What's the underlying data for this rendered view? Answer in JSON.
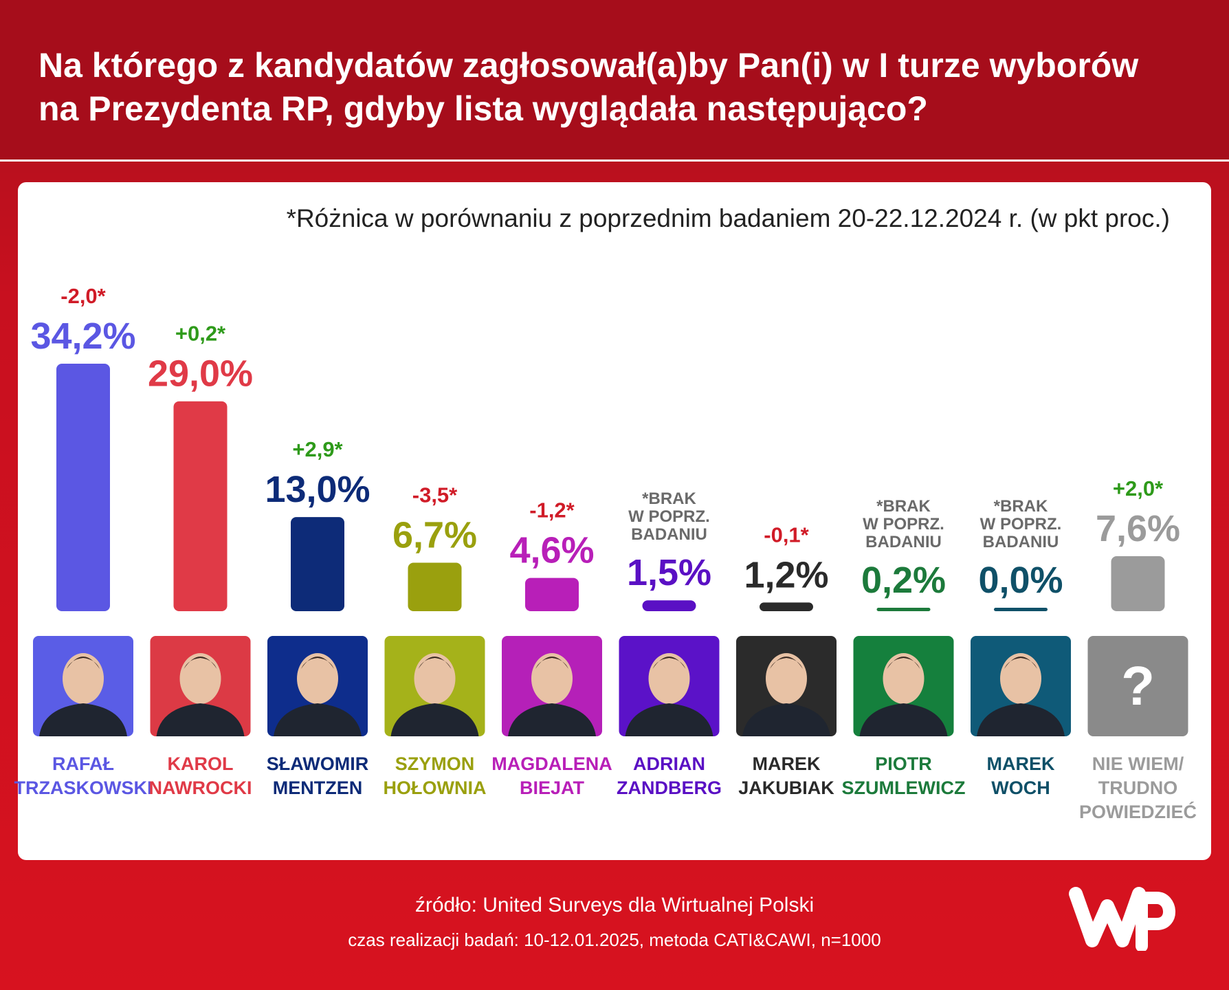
{
  "title": "Na którego z kandydatów zagłosował(a)by Pan(i) w I turze wyborów na Prezydenta RP, gdyby lista wyglądała następująco?",
  "note": "*Różnica w porównaniu z poprzednim badaniem 20-22.12.2024 r. (w pkt proc.)",
  "footer": {
    "source": "źródło: United Surveys dla Wirtualnej Polski",
    "meta": "czas realizacji badań: 10-12.01.2025, metoda CATI&CAWI, n=1000"
  },
  "logo_text": "WP",
  "colors": {
    "header": "#a60d1b",
    "background": "#d7121f",
    "card": "#ffffff"
  },
  "chart_data": {
    "type": "bar",
    "title": "Na którego z kandydatów zagłosował(a)by Pan(i) w I turze wyborów na Prezydenta RP, gdyby lista wyglądała następująco?",
    "categories": [
      [
        "RAFAŁ",
        "TRZASKOWSKI"
      ],
      [
        "KAROL",
        "NAWROCKI"
      ],
      [
        "SŁAWOMIR",
        "MENTZEN"
      ],
      [
        "SZYMON",
        "HOŁOWNIA"
      ],
      [
        "MAGDALENA",
        "BIEJAT"
      ],
      [
        "ADRIAN",
        "ZANDBERG"
      ],
      [
        "MAREK",
        "JAKUBIAK"
      ],
      [
        "PIOTR",
        "SZUMLEWICZ"
      ],
      [
        "MAREK",
        "WOCH"
      ],
      [
        "NIE WIEM/",
        "TRUDNO",
        "POWIEDZIEĆ"
      ]
    ],
    "values": [
      34.2,
      29.0,
      13.0,
      6.7,
      4.6,
      1.5,
      1.2,
      0.2,
      0.0,
      7.6
    ],
    "value_labels": [
      "34,2%",
      "29,0%",
      "13,0%",
      "6,7%",
      "4,6%",
      "1,5%",
      "1,2%",
      "0,2%",
      "0,0%",
      "7,6%"
    ],
    "change_labels": [
      [
        "-2,0*"
      ],
      [
        "+0,2*"
      ],
      [
        "+2,9*"
      ],
      [
        "-3,5*"
      ],
      [
        "-1,2*"
      ],
      [
        "*BRAK",
        "W POPRZ.",
        "BADANIU"
      ],
      [
        "-0,1*"
      ],
      [
        "*BRAK",
        "W POPRZ.",
        "BADANIU"
      ],
      [
        "*BRAK",
        "W POPRZ.",
        "BADANIU"
      ],
      [
        "+2,0*"
      ]
    ],
    "change_types": [
      "neg",
      "pos",
      "pos",
      "neg",
      "neg",
      "none",
      "neg",
      "none",
      "none",
      "pos"
    ],
    "colors": [
      "#5b57e3",
      "#e03a47",
      "#0d2b78",
      "#9aa00e",
      "#b81fb8",
      "#5a10c4",
      "#2a2a2a",
      "#1c7a3b",
      "#0f5068",
      "#9b9b9b"
    ],
    "photo_backgrounds": [
      "#5a5de6",
      "#dc3a45",
      "#0e2d8c",
      "#a5b21a",
      "#b520b8",
      "#5b12c8",
      "#2b2b2b",
      "#15803d",
      "#0f5a78",
      "#8a8a8a"
    ],
    "unknown_symbol": "?",
    "change_colors": {
      "pos": "#2e9a1a",
      "neg": "#d01b27",
      "none": "#6a6a6a"
    },
    "ylim": [
      0,
      34.2
    ],
    "grid": false,
    "legend": "none"
  }
}
